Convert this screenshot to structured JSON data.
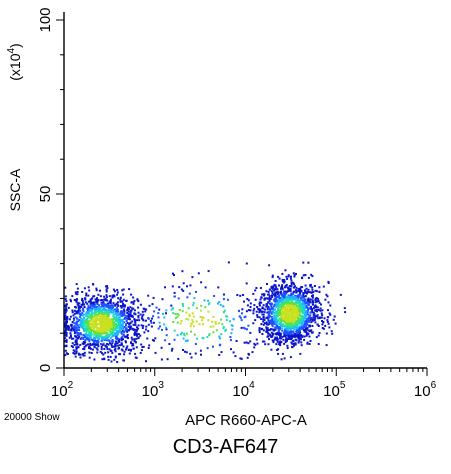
{
  "caption": "CD3-AF647",
  "chart_data": {
    "type": "scatter",
    "style": "density-colored flow cytometry dot plot",
    "xlabel": "APC R660-APC-A",
    "ylabel": "SSC-A",
    "ylabel_multiplier": "(x10",
    "ylabel_multiplier_exp": "4",
    "ylabel_multiplier_close": ")",
    "event_count_label": "20000 Show",
    "x_scale": "log",
    "xlim": [
      100,
      1000000
    ],
    "ylim": [
      0,
      100
    ],
    "x_ticks": [
      {
        "base": "10",
        "exp": "2",
        "value": 100
      },
      {
        "base": "10",
        "exp": "3",
        "value": 1000
      },
      {
        "base": "10",
        "exp": "4",
        "value": 10000
      },
      {
        "base": "10",
        "exp": "5",
        "value": 100000
      },
      {
        "base": "10",
        "exp": "6",
        "value": 1000000
      }
    ],
    "y_ticks": [
      {
        "label": "0",
        "value": 0
      },
      {
        "label": "50",
        "value": 50
      },
      {
        "label": "100",
        "value": 100
      }
    ],
    "grid": false,
    "populations": [
      {
        "x_center": 250,
        "x_log_spread": 0.22,
        "y_center": 13,
        "y_spread": 4.2,
        "weight": 0.46
      },
      {
        "x_center": 30000,
        "x_log_spread": 0.17,
        "y_center": 16,
        "y_spread": 4.4,
        "weight": 0.46
      },
      {
        "x_center": 3000,
        "x_log_spread": 0.4,
        "y_center": 14,
        "y_spread": 6,
        "weight": 0.08
      }
    ],
    "density_colors": [
      "#0a14c8",
      "#1f50ff",
      "#1fb4ff",
      "#1fe0b0",
      "#60e040",
      "#c8e020"
    ]
  }
}
